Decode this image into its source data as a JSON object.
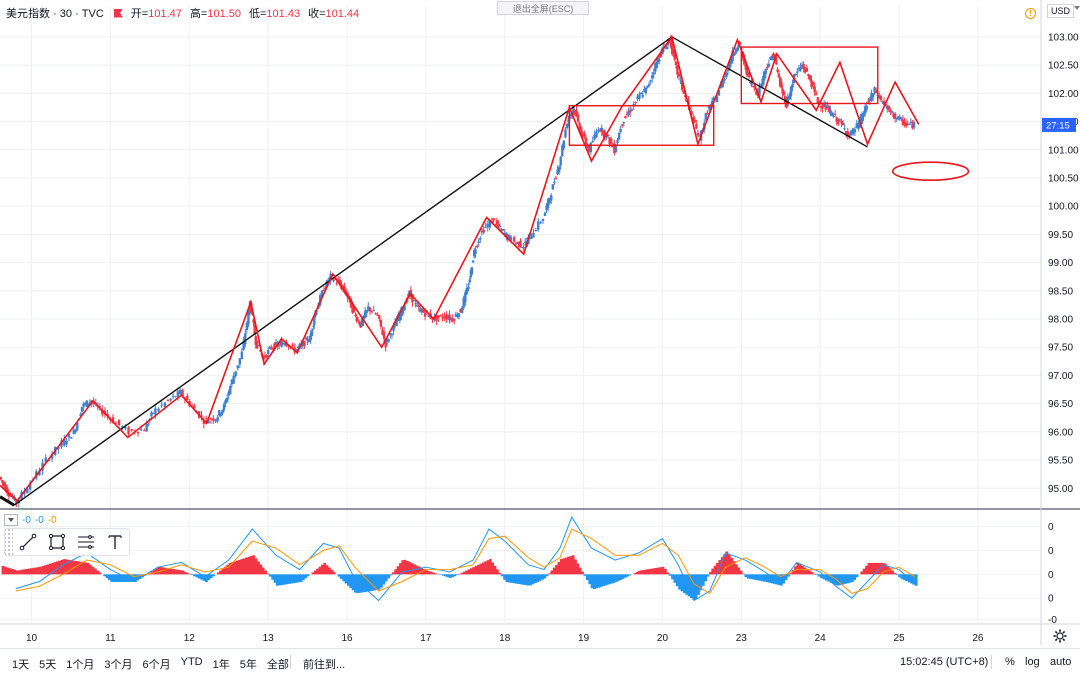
{
  "header": {
    "symbol": "美元指数 · 30 · TVC",
    "ohlc": [
      {
        "label": "开",
        "value": "101.47"
      },
      {
        "label": "高",
        "value": "101.50"
      },
      {
        "label": "低",
        "value": "101.43"
      },
      {
        "label": "收",
        "value": "101.44"
      }
    ],
    "exit_fullscreen": "退出全屏(ESC)",
    "currency": "USD",
    "alert_glyph": "!"
  },
  "colors": {
    "up": "#3f7fd0",
    "down": "#f23645",
    "pattern": "#e8161c",
    "trend": "#111111",
    "macd_line": "#2196f3",
    "signal_line": "#ff9800",
    "hist_pos": "#f23645",
    "hist_neg": "#2196f3",
    "price_tag": "#2962ff"
  },
  "chart_data": {
    "type": "line",
    "title": "美元指数 · 30 · TVC",
    "y_ticks": [
      "103.00",
      "102.50",
      "102.00",
      "101.50",
      "101.00",
      "100.50",
      "100.00",
      "99.50",
      "99.00",
      "98.50",
      "98.00",
      "97.50",
      "97.00",
      "96.50",
      "96.00",
      "95.50",
      "95.00"
    ],
    "ylim": [
      94.65,
      103.3
    ],
    "x_ticks": [
      {
        "label": "10",
        "x": 0.5
      },
      {
        "label": "11",
        "x": 1.5
      },
      {
        "label": "12",
        "x": 2.5
      },
      {
        "label": "13",
        "x": 3.5
      },
      {
        "label": "16",
        "x": 4.5
      },
      {
        "label": "17",
        "x": 5.5
      },
      {
        "label": "18",
        "x": 6.5
      },
      {
        "label": "19",
        "x": 7.5
      },
      {
        "label": "20",
        "x": 8.5
      },
      {
        "label": "23",
        "x": 9.5
      },
      {
        "label": "24",
        "x": 10.5
      },
      {
        "label": "25",
        "x": 11.5
      },
      {
        "label": "26",
        "x": 12.5
      }
    ],
    "xlim": [
      0.1,
      13.3
    ],
    "last_price_label": "27:15",
    "last_price": 101.44,
    "price_path": [
      [
        0.1,
        95.2
      ],
      [
        0.2,
        94.95
      ],
      [
        0.32,
        94.75
      ],
      [
        0.5,
        95.1
      ],
      [
        0.7,
        95.5
      ],
      [
        0.9,
        95.8
      ],
      [
        1.05,
        96.0
      ],
      [
        1.15,
        96.45
      ],
      [
        1.25,
        96.55
      ],
      [
        1.38,
        96.4
      ],
      [
        1.55,
        96.2
      ],
      [
        1.75,
        96.0
      ],
      [
        1.95,
        96.05
      ],
      [
        2.05,
        96.35
      ],
      [
        2.25,
        96.55
      ],
      [
        2.4,
        96.7
      ],
      [
        2.55,
        96.45
      ],
      [
        2.7,
        96.2
      ],
      [
        2.85,
        96.25
      ],
      [
        2.95,
        96.45
      ],
      [
        3.05,
        96.9
      ],
      [
        3.18,
        97.4
      ],
      [
        3.28,
        98.3
      ],
      [
        3.35,
        97.6
      ],
      [
        3.45,
        97.3
      ],
      [
        3.55,
        97.5
      ],
      [
        3.65,
        97.55
      ],
      [
        3.72,
        97.6
      ],
      [
        3.85,
        97.45
      ],
      [
        3.95,
        97.55
      ],
      [
        4.05,
        97.7
      ],
      [
        4.1,
        98.1
      ],
      [
        4.22,
        98.55
      ],
      [
        4.3,
        98.75
      ],
      [
        4.4,
        98.65
      ],
      [
        4.5,
        98.45
      ],
      [
        4.6,
        98.1
      ],
      [
        4.68,
        97.9
      ],
      [
        4.78,
        98.2
      ],
      [
        4.9,
        98.05
      ],
      [
        5.0,
        97.55
      ],
      [
        5.1,
        97.85
      ],
      [
        5.2,
        98.15
      ],
      [
        5.3,
        98.45
      ],
      [
        5.4,
        98.2
      ],
      [
        5.5,
        98.1
      ],
      [
        5.62,
        98.0
      ],
      [
        5.75,
        98.05
      ],
      [
        5.85,
        98.0
      ],
      [
        5.95,
        98.15
      ],
      [
        6.05,
        98.6
      ],
      [
        6.12,
        99.2
      ],
      [
        6.22,
        99.55
      ],
      [
        6.35,
        99.75
      ],
      [
        6.45,
        99.6
      ],
      [
        6.55,
        99.45
      ],
      [
        6.65,
        99.35
      ],
      [
        6.75,
        99.3
      ],
      [
        6.85,
        99.5
      ],
      [
        7.0,
        99.8
      ],
      [
        7.1,
        100.25
      ],
      [
        7.2,
        100.75
      ],
      [
        7.3,
        101.5
      ],
      [
        7.38,
        101.75
      ],
      [
        7.48,
        101.3
      ],
      [
        7.58,
        101.0
      ],
      [
        7.7,
        101.4
      ],
      [
        7.8,
        101.25
      ],
      [
        7.9,
        101.0
      ],
      [
        8.0,
        101.5
      ],
      [
        8.1,
        101.7
      ],
      [
        8.22,
        101.95
      ],
      [
        8.32,
        102.1
      ],
      [
        8.42,
        102.5
      ],
      [
        8.5,
        102.75
      ],
      [
        8.6,
        102.95
      ],
      [
        8.68,
        102.45
      ],
      [
        8.78,
        102.0
      ],
      [
        8.88,
        101.6
      ],
      [
        8.98,
        101.2
      ],
      [
        9.08,
        101.7
      ],
      [
        9.18,
        101.9
      ],
      [
        9.3,
        102.3
      ],
      [
        9.4,
        102.7
      ],
      [
        9.48,
        102.9
      ],
      [
        9.55,
        102.5
      ],
      [
        9.62,
        102.2
      ],
      [
        9.72,
        102.0
      ],
      [
        9.82,
        102.45
      ],
      [
        9.92,
        102.7
      ],
      [
        10.0,
        102.15
      ],
      [
        10.08,
        101.8
      ],
      [
        10.18,
        102.3
      ],
      [
        10.28,
        102.5
      ],
      [
        10.38,
        102.25
      ],
      [
        10.48,
        101.85
      ],
      [
        10.58,
        101.75
      ],
      [
        10.68,
        101.6
      ],
      [
        10.78,
        101.45
      ],
      [
        10.88,
        101.25
      ],
      [
        11.0,
        101.45
      ],
      [
        11.1,
        101.8
      ],
      [
        11.2,
        102.05
      ],
      [
        11.3,
        101.85
      ],
      [
        11.4,
        101.65
      ],
      [
        11.5,
        101.55
      ],
      [
        11.6,
        101.45
      ],
      [
        11.7,
        101.44
      ]
    ],
    "zigzag_lines": [
      [
        [
          0.1,
          95.05
        ],
        [
          0.32,
          94.78
        ],
        [
          1.28,
          96.55
        ],
        [
          1.72,
          95.9
        ],
        [
          2.4,
          96.65
        ],
        [
          2.72,
          96.15
        ],
        [
          3.28,
          98.3
        ],
        [
          3.45,
          97.2
        ],
        [
          3.67,
          97.65
        ],
        [
          3.87,
          97.4
        ],
        [
          4.32,
          98.8
        ],
        [
          4.94,
          97.5
        ],
        [
          5.3,
          98.45
        ],
        [
          5.6,
          98.0
        ],
        [
          6.27,
          99.8
        ],
        [
          6.74,
          99.15
        ],
        [
          7.32,
          101.75
        ],
        [
          7.6,
          100.8
        ],
        [
          7.98,
          101.75
        ],
        [
          8.62,
          103.0
        ],
        [
          8.95,
          101.1
        ],
        [
          9.45,
          102.95
        ],
        [
          9.75,
          101.85
        ],
        [
          9.95,
          102.7
        ],
        [
          10.45,
          101.7
        ],
        [
          10.75,
          102.55
        ],
        [
          11.1,
          101.1
        ],
        [
          11.45,
          102.2
        ],
        [
          11.75,
          101.45
        ]
      ]
    ],
    "trend_lines": [
      [
        [
          0.28,
          94.7
        ],
        [
          8.62,
          103.0
        ]
      ],
      [
        [
          8.62,
          103.0
        ],
        [
          11.1,
          101.05
        ]
      ],
      [
        [
          0.1,
          94.85
        ],
        [
          0.28,
          94.7
        ]
      ]
    ],
    "rectangles": [
      {
        "x0": 7.32,
        "x1": 9.15,
        "y0": 101.08,
        "y1": 101.78
      },
      {
        "x0": 9.5,
        "x1": 11.23,
        "y0": 101.82,
        "y1": 102.82
      }
    ],
    "ellipse": {
      "cx": 11.9,
      "cy": 100.62,
      "rx": 0.48,
      "ry": 0.16
    },
    "indicator": {
      "legend_values": [
        "-0",
        "-0",
        "-0"
      ],
      "y_ticks": [
        "0",
        "0",
        "0",
        "0",
        "-0"
      ],
      "macd": [
        [
          0.0,
          -0.2
        ],
        [
          0.3,
          -0.3
        ],
        [
          0.6,
          -0.15
        ],
        [
          0.9,
          0.2
        ],
        [
          1.2,
          0.45
        ],
        [
          1.5,
          0.1
        ],
        [
          1.8,
          -0.15
        ],
        [
          2.1,
          0.15
        ],
        [
          2.4,
          0.25
        ],
        [
          2.7,
          -0.05
        ],
        [
          3.0,
          0.3
        ],
        [
          3.3,
          0.95
        ],
        [
          3.6,
          0.4
        ],
        [
          3.9,
          0.1
        ],
        [
          4.2,
          0.65
        ],
        [
          4.4,
          0.55
        ],
        [
          4.6,
          -0.1
        ],
        [
          4.9,
          -0.55
        ],
        [
          5.2,
          0.05
        ],
        [
          5.5,
          0.15
        ],
        [
          5.8,
          0.05
        ],
        [
          6.1,
          0.3
        ],
        [
          6.3,
          0.95
        ],
        [
          6.5,
          0.7
        ],
        [
          6.8,
          0.2
        ],
        [
          7.0,
          0.1
        ],
        [
          7.2,
          0.55
        ],
        [
          7.35,
          1.2
        ],
        [
          7.6,
          0.55
        ],
        [
          7.9,
          0.3
        ],
        [
          8.2,
          0.45
        ],
        [
          8.5,
          0.75
        ],
        [
          8.7,
          0.2
        ],
        [
          8.9,
          -0.55
        ],
        [
          9.1,
          -0.35
        ],
        [
          9.3,
          0.45
        ],
        [
          9.55,
          0.3
        ],
        [
          9.8,
          0.05
        ],
        [
          10.0,
          -0.2
        ],
        [
          10.2,
          0.25
        ],
        [
          10.5,
          0.05
        ],
        [
          10.7,
          -0.25
        ],
        [
          10.9,
          -0.5
        ],
        [
          11.1,
          -0.15
        ],
        [
          11.3,
          0.2
        ],
        [
          11.5,
          0.1
        ],
        [
          11.7,
          -0.2
        ]
      ],
      "signal": [
        [
          0.0,
          -0.35
        ],
        [
          0.3,
          -0.35
        ],
        [
          0.6,
          -0.25
        ],
        [
          0.9,
          0.0
        ],
        [
          1.2,
          0.3
        ],
        [
          1.5,
          0.2
        ],
        [
          1.8,
          -0.05
        ],
        [
          2.1,
          0.05
        ],
        [
          2.4,
          0.2
        ],
        [
          2.7,
          0.05
        ],
        [
          3.0,
          0.15
        ],
        [
          3.3,
          0.7
        ],
        [
          3.6,
          0.55
        ],
        [
          3.9,
          0.2
        ],
        [
          4.2,
          0.5
        ],
        [
          4.4,
          0.6
        ],
        [
          4.6,
          0.15
        ],
        [
          4.9,
          -0.35
        ],
        [
          5.2,
          -0.15
        ],
        [
          5.5,
          0.1
        ],
        [
          5.8,
          0.1
        ],
        [
          6.1,
          0.2
        ],
        [
          6.3,
          0.75
        ],
        [
          6.5,
          0.8
        ],
        [
          6.8,
          0.35
        ],
        [
          7.0,
          0.15
        ],
        [
          7.2,
          0.35
        ],
        [
          7.35,
          0.95
        ],
        [
          7.6,
          0.75
        ],
        [
          7.9,
          0.4
        ],
        [
          8.2,
          0.4
        ],
        [
          8.5,
          0.65
        ],
        [
          8.7,
          0.4
        ],
        [
          8.9,
          -0.2
        ],
        [
          9.1,
          -0.4
        ],
        [
          9.3,
          0.15
        ],
        [
          9.55,
          0.35
        ],
        [
          9.8,
          0.15
        ],
        [
          10.0,
          -0.05
        ],
        [
          10.2,
          0.1
        ],
        [
          10.5,
          0.1
        ],
        [
          10.7,
          -0.1
        ],
        [
          10.9,
          -0.4
        ],
        [
          11.1,
          -0.3
        ],
        [
          11.3,
          0.05
        ],
        [
          11.5,
          0.15
        ],
        [
          11.7,
          -0.05
        ]
      ],
      "ylim": [
        -1.0,
        1.35
      ]
    }
  },
  "drawing_tools": [
    {
      "name": "trend-line-tool"
    },
    {
      "name": "rectangle-tool"
    },
    {
      "name": "horizontal-lines-tool"
    },
    {
      "name": "text-tool"
    }
  ],
  "bottom": {
    "ranges": [
      "1天",
      "5天",
      "1个月",
      "3个月",
      "6个月",
      "YTD",
      "1年",
      "5年",
      "全部"
    ],
    "goto": "前往到...",
    "time": "15:02:45 (UTC+8)",
    "percent": "%",
    "log": "log",
    "auto": "auto"
  }
}
